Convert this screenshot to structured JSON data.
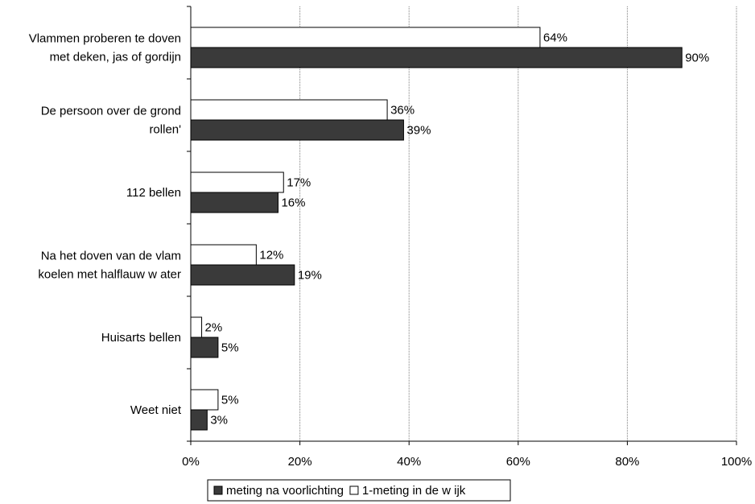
{
  "chart_data": {
    "type": "bar",
    "orientation": "horizontal",
    "title": "",
    "categories": [
      [
        "Vlammen proberen te doven",
        "met deken, jas of gordijn"
      ],
      [
        "De persoon over de grond",
        "rollen'"
      ],
      [
        "112 bellen"
      ],
      [
        "Na het doven van de vlam",
        "koelen met halflauw  w ater"
      ],
      [
        "Huisarts bellen"
      ],
      [
        "Weet niet"
      ]
    ],
    "series": [
      {
        "name": "1-meting in de w ijk",
        "color": "#ffffff",
        "values": [
          64,
          36,
          17,
          12,
          2,
          5
        ]
      },
      {
        "name": "meting na voorlichting",
        "color": "#3a3a3a",
        "values": [
          90,
          39,
          16,
          19,
          5,
          3
        ]
      }
    ],
    "data_labels": [
      [
        "64%",
        "36%",
        "17%",
        "12%",
        "2%",
        "5%"
      ],
      [
        "90%",
        "39%",
        "16%",
        "19%",
        "5%",
        "3%"
      ]
    ],
    "xlim": [
      0,
      100
    ],
    "xticks": [
      "0%",
      "20%",
      "40%",
      "60%",
      "80%",
      "100%"
    ],
    "grid": true,
    "legend": {
      "placement": "bottom-center",
      "order": [
        1,
        0
      ]
    }
  }
}
